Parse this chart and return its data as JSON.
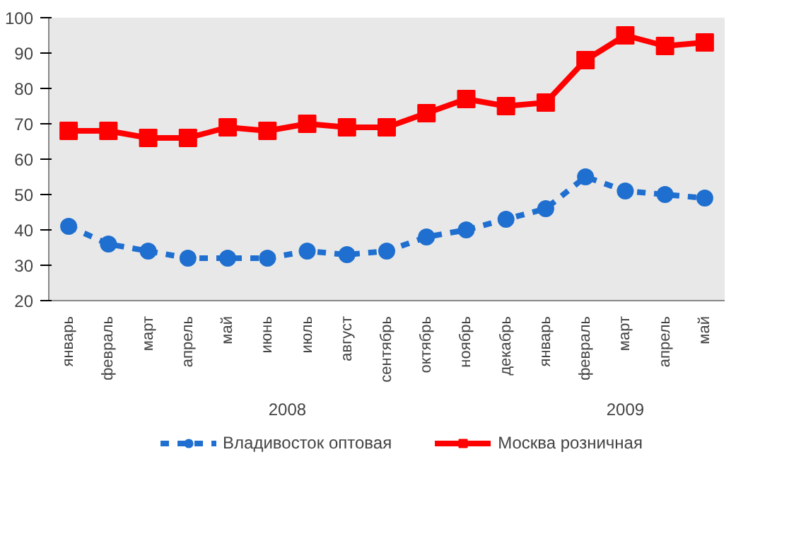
{
  "chart_data": {
    "type": "line",
    "categories": [
      "январь",
      "февраль",
      "март",
      "апрель",
      "май",
      "июнь",
      "июль",
      "август",
      "сентябрь",
      "октябрь",
      "ноябрь",
      "декабрь",
      "январь",
      "февраль",
      "март",
      "апрель",
      "май"
    ],
    "series": [
      {
        "name": "Владивосток оптовая",
        "color": "#1f6fd0",
        "marker": "circle",
        "line_style": "dashed",
        "values": [
          41,
          36,
          34,
          32,
          32,
          32,
          34,
          33,
          34,
          38,
          40,
          43,
          46,
          55,
          51,
          50,
          49
        ]
      },
      {
        "name": "Москва розничная",
        "color": "#ff0000",
        "marker": "square",
        "line_style": "solid",
        "values": [
          68,
          68,
          66,
          66,
          69,
          68,
          70,
          69,
          69,
          73,
          77,
          75,
          76,
          88,
          95,
          92,
          93
        ]
      }
    ],
    "annotations": [
      "2008",
      "2009"
    ],
    "ylim": [
      20,
      100
    ],
    "yticks": [
      20,
      30,
      40,
      50,
      60,
      70,
      80,
      90,
      100
    ],
    "grid": false,
    "legend": "bottom"
  }
}
